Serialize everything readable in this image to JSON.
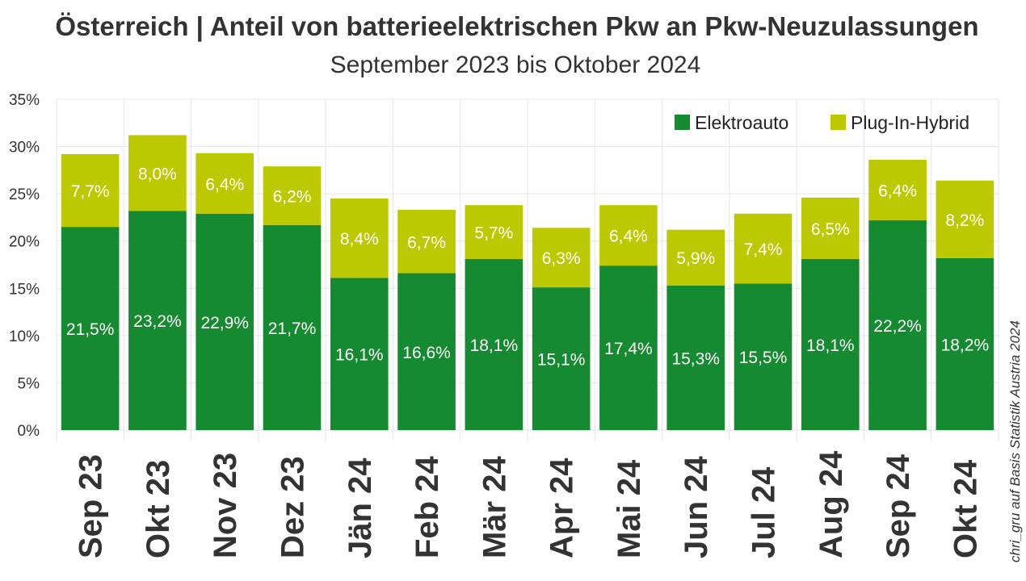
{
  "chart_data": {
    "type": "bar",
    "stacked": true,
    "title": "Österreich | Anteil von batterieelektrischen Pkw an Pkw-Neuzulassungen",
    "subtitle": "September 2023 bis Oktober 2024",
    "xlabel": "",
    "ylabel": "",
    "ylim": [
      0,
      35
    ],
    "yticks": [
      "0%",
      "5%",
      "10%",
      "15%",
      "20%",
      "25%",
      "30%",
      "35%"
    ],
    "grid": true,
    "legend_position": "top-right",
    "categories": [
      "Sep 23",
      "Okt 23",
      "Nov 23",
      "Dez 23",
      "Jän 24",
      "Feb 24",
      "Mär 24",
      "Apr 24",
      "Mai 24",
      "Jun 24",
      "Jul 24",
      "Aug 24",
      "Sep 24",
      "Okt 24"
    ],
    "series": [
      {
        "name": "Elektroauto",
        "color": "#168a30",
        "values": [
          21.5,
          23.2,
          22.9,
          21.7,
          16.1,
          16.6,
          18.1,
          15.1,
          17.4,
          15.3,
          15.5,
          18.1,
          22.2,
          18.2
        ],
        "labels": [
          "21,5%",
          "23,2%",
          "22,9%",
          "21,7%",
          "16,1%",
          "16,6%",
          "18,1%",
          "15,1%",
          "17,4%",
          "15,3%",
          "15,5%",
          "18,1%",
          "22,2%",
          "18,2%"
        ]
      },
      {
        "name": "Plug-In-Hybrid",
        "color": "#bcc800",
        "values": [
          7.7,
          8.0,
          6.4,
          6.2,
          8.4,
          6.7,
          5.7,
          6.3,
          6.4,
          5.9,
          7.4,
          6.5,
          6.4,
          8.2
        ],
        "labels": [
          "7,7%",
          "8,0%",
          "6,4%",
          "6,2%",
          "8,4%",
          "6,7%",
          "5,7%",
          "6,3%",
          "6,4%",
          "5,9%",
          "7,4%",
          "6,5%",
          "6,4%",
          "8,2%"
        ]
      }
    ],
    "source": "chri_gru auf Basis Statistik Austria 2024"
  }
}
